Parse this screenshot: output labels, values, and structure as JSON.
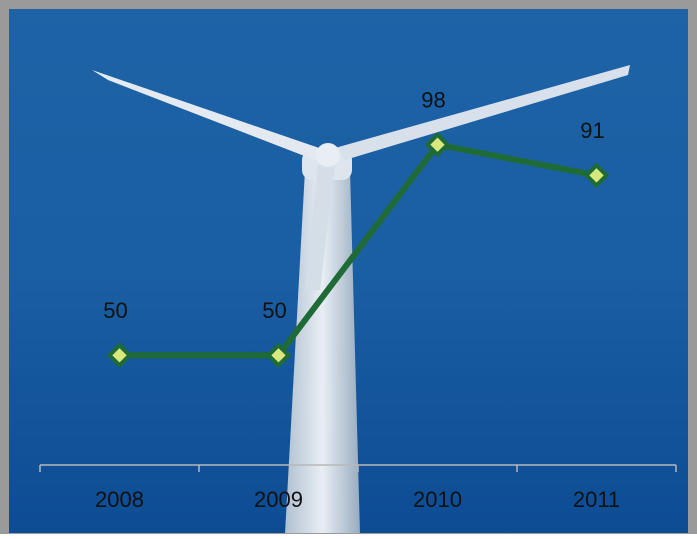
{
  "chart_data": {
    "type": "line",
    "categories": [
      "2008",
      "2009",
      "2010",
      "2011"
    ],
    "series": [
      {
        "values": [
          50,
          50,
          98,
          91
        ],
        "color": "#1f6b35",
        "marker_color": "#d9e87c"
      }
    ],
    "ylim": [
      25,
      110
    ],
    "axis_color": "#b8b8b8"
  }
}
